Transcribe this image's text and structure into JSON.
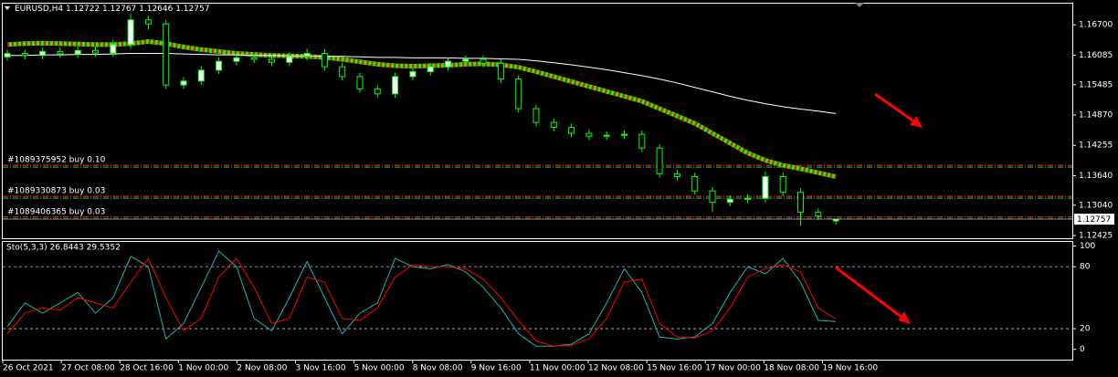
{
  "chart_data": [
    {
      "type": "candlestick",
      "title": "EURUSD,H4  1.12722 1.12767 1.12646 1.12757",
      "open": [
        1.1605,
        1.1612,
        1.1608,
        1.1616,
        1.1611,
        1.1618,
        1.1613,
        1.163,
        1.168,
        1.1672,
        1.1548,
        1.1556,
        1.1578,
        1.1596,
        1.1603,
        1.16,
        1.1594,
        1.1606,
        1.1612,
        1.1585,
        1.1565,
        1.154,
        1.153,
        1.1565,
        1.1575,
        1.1585,
        1.1596,
        1.16,
        1.1592,
        1.156,
        1.15,
        1.1472,
        1.1462,
        1.145,
        1.1444,
        1.1446,
        1.1448,
        1.142,
        1.1368,
        1.1362,
        1.1333,
        1.131,
        1.1316,
        1.1318,
        1.1362,
        1.133,
        1.129,
        1.12722
      ],
      "high": [
        1.162,
        1.162,
        1.1624,
        1.1624,
        1.1626,
        1.1626,
        1.164,
        1.1692,
        1.1688,
        1.168,
        1.1564,
        1.1586,
        1.1604,
        1.1612,
        1.161,
        1.1606,
        1.1614,
        1.1622,
        1.162,
        1.1593,
        1.1573,
        1.1548,
        1.1573,
        1.1583,
        1.1593,
        1.1604,
        1.1608,
        1.1608,
        1.16,
        1.1568,
        1.1508,
        1.148,
        1.147,
        1.1458,
        1.1454,
        1.1456,
        1.1456,
        1.1428,
        1.1376,
        1.137,
        1.1341,
        1.1324,
        1.1326,
        1.1372,
        1.137,
        1.1338,
        1.1298,
        1.12767
      ],
      "low": [
        1.1597,
        1.16,
        1.16,
        1.1603,
        1.1603,
        1.1605,
        1.1605,
        1.1622,
        1.166,
        1.154,
        1.154,
        1.1548,
        1.157,
        1.1588,
        1.1592,
        1.1586,
        1.1586,
        1.1598,
        1.1577,
        1.1557,
        1.1532,
        1.1522,
        1.1522,
        1.1557,
        1.1567,
        1.1577,
        1.1588,
        1.1584,
        1.1552,
        1.1492,
        1.1464,
        1.1454,
        1.1442,
        1.1436,
        1.1436,
        1.1438,
        1.1412,
        1.136,
        1.1354,
        1.1325,
        1.129,
        1.1302,
        1.1308,
        1.131,
        1.1322,
        1.1262,
        1.1274,
        1.12646
      ],
      "close": [
        1.1612,
        1.1608,
        1.1616,
        1.1611,
        1.1618,
        1.1613,
        1.163,
        1.168,
        1.1672,
        1.1548,
        1.1556,
        1.1578,
        1.1596,
        1.1603,
        1.16,
        1.1594,
        1.1606,
        1.1612,
        1.1585,
        1.1565,
        1.154,
        1.153,
        1.1565,
        1.1575,
        1.1585,
        1.1596,
        1.16,
        1.1592,
        1.156,
        1.15,
        1.1472,
        1.1462,
        1.145,
        1.1444,
        1.1446,
        1.1448,
        1.142,
        1.1368,
        1.1362,
        1.1333,
        1.131,
        1.1316,
        1.1318,
        1.1362,
        1.133,
        1.129,
        1.1282,
        1.12757
      ],
      "up_fill": "#ffffff",
      "down_fill": "#000000",
      "candle_color": "#00ff00",
      "overlays": [
        {
          "color": "#00ff00",
          "color2": "#ff0000",
          "values": [
            1.163,
            1.1632,
            1.1633,
            1.1632,
            1.1631,
            1.163,
            1.163,
            1.1632,
            1.1636,
            1.1632,
            1.1625,
            1.162,
            1.1616,
            1.1612,
            1.161,
            1.1608,
            1.1607,
            1.1606,
            1.1604,
            1.16,
            1.1595,
            1.159,
            1.1587,
            1.1586,
            1.1587,
            1.1588,
            1.159,
            1.1591,
            1.1589,
            1.1584,
            1.1575,
            1.1565,
            1.1555,
            1.1545,
            1.1535,
            1.1525,
            1.1515,
            1.15,
            1.1485,
            1.147,
            1.145,
            1.143,
            1.141,
            1.1395,
            1.1385,
            1.1378,
            1.137,
            1.1362
          ]
        },
        {
          "color": "#ffffff",
          "values": [
            1.1608,
            1.1608,
            1.1609,
            1.1609,
            1.161,
            1.161,
            1.1611,
            1.1612,
            1.1612,
            1.1612,
            1.1611,
            1.161,
            1.1609,
            1.1609,
            1.1608,
            1.1608,
            1.1607,
            1.1607,
            1.1606,
            1.1606,
            1.1605,
            1.1604,
            1.1604,
            1.1603,
            1.1603,
            1.1603,
            1.1602,
            1.1602,
            1.1601,
            1.16,
            1.1597,
            1.1593,
            1.1589,
            1.1584,
            1.1579,
            1.1573,
            1.1567,
            1.156,
            1.1552,
            1.1543,
            1.1534,
            1.1525,
            1.1517,
            1.151,
            1.1504,
            1.1499,
            1.1495,
            1.149
          ]
        }
      ],
      "orders": [
        {
          "label": "#1089375952 buy 0.10",
          "price": 1.1385
        },
        {
          "label": "#1089330873 buy 0.03",
          "price": 1.1322
        },
        {
          "label": "#1089406365 buy 0.03",
          "price": 1.128
        }
      ],
      "current_price": {
        "value": 1.12757,
        "label": "1.12757"
      },
      "ylim": [
        1.1237,
        1.1713
      ],
      "yticks": [
        {
          "value": 1.167,
          "label": "1.16700"
        },
        {
          "value": 1.16085,
          "label": "1.16085"
        },
        {
          "value": 1.15485,
          "label": "1.15485"
        },
        {
          "value": 1.1487,
          "label": "1.14870"
        },
        {
          "value": 1.14255,
          "label": "1.14255"
        },
        {
          "value": 1.1364,
          "label": "1.13640"
        },
        {
          "value": 1.1304,
          "label": "1.13040"
        },
        {
          "value": 1.12425,
          "label": "1.12425"
        }
      ]
    },
    {
      "type": "line",
      "title": "Sto(5,3,3) 26.8443 29.5352",
      "series": [
        {
          "color": "#20b2aa",
          "values": [
            22,
            45,
            35,
            45,
            55,
            35,
            50,
            90,
            80,
            10,
            25,
            60,
            95,
            80,
            30,
            18,
            50,
            85,
            50,
            15,
            35,
            45,
            88,
            80,
            78,
            82,
            75,
            60,
            40,
            15,
            3,
            3,
            5,
            15,
            45,
            78,
            55,
            12,
            10,
            12,
            25,
            55,
            80,
            73,
            88,
            65,
            28,
            26.8443
          ]
        },
        {
          "color": "#ff0000",
          "values": [
            15,
            35,
            40,
            38,
            50,
            45,
            40,
            65,
            88,
            50,
            18,
            30,
            70,
            88,
            60,
            25,
            30,
            70,
            65,
            30,
            28,
            40,
            70,
            82,
            80,
            80,
            78,
            68,
            50,
            28,
            8,
            3,
            4,
            10,
            30,
            65,
            68,
            25,
            12,
            11,
            18,
            40,
            70,
            78,
            82,
            75,
            40,
            29.5352
          ]
        }
      ],
      "ylim": [
        -10,
        104
      ],
      "yticks": [
        0,
        20,
        80,
        100
      ],
      "levels": [
        20,
        80
      ],
      "x_labels": [
        "26 Oct 2021",
        "27 Oct 08:00",
        "28 Oct 16:00",
        "1 Nov 00:00",
        "2 Nov 08:00",
        "3 Nov 16:00",
        "5 Nov 00:00",
        "8 Nov 08:00",
        "9 Nov 16:00",
        "11 Nov 00:00",
        "12 Nov 08:00",
        "15 Nov 16:00",
        "17 Nov 00:00",
        "18 Nov 08:00",
        "19 Nov 16:00"
      ]
    }
  ]
}
